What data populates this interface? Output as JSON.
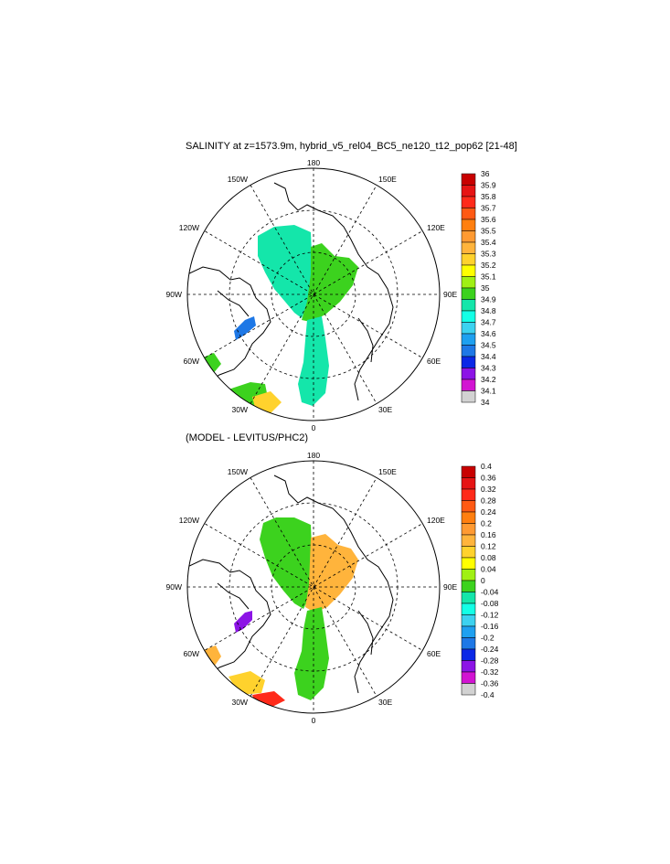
{
  "panels": [
    {
      "id": "salinity",
      "title": "SALINITY at z=1573.9m, hybrid_v5_rel04_BC5_ne120_t12_pop62 [21-48]",
      "longitude_labels": [
        "180",
        "150E",
        "120E",
        "90E",
        "60E",
        "30E",
        "0",
        "30W",
        "60W",
        "90W",
        "120W",
        "150W"
      ],
      "colorbar_labels": [
        "36",
        "35.9",
        "35.8",
        "35.7",
        "35.6",
        "35.5",
        "35.4",
        "35.3",
        "35.2",
        "35.1",
        "35",
        "34.9",
        "34.8",
        "34.7",
        "34.6",
        "34.5",
        "34.4",
        "34.3",
        "34.2",
        "34.1",
        "34"
      ],
      "colorbar_colors": [
        "#c80000",
        "#e61414",
        "#ff2a1a",
        "#ff5a14",
        "#ff7f0f",
        "#ff9a32",
        "#ffb43c",
        "#ffd22d",
        "#ffff00",
        "#a0f014",
        "#3cd21e",
        "#14e6aa",
        "#14ffe6",
        "#3cd2f0",
        "#1ea0f0",
        "#1e78e6",
        "#0a28e6",
        "#8c14e6",
        "#d214d2",
        "#d2d2d2"
      ]
    },
    {
      "id": "difference",
      "title": "(MODEL - LEVITUS/PHC2)",
      "longitude_labels": [
        "180",
        "150E",
        "120E",
        "90E",
        "60E",
        "30E",
        "0",
        "30W",
        "60W",
        "90W",
        "120W",
        "150W"
      ],
      "colorbar_labels": [
        "0.4",
        "0.36",
        "0.32",
        "0.28",
        "0.24",
        "0.2",
        "0.16",
        "0.12",
        "0.08",
        "0.04",
        "0",
        "-0.04",
        "-0.08",
        "-0.12",
        "-0.16",
        "-0.2",
        "-0.24",
        "-0.28",
        "-0.32",
        "-0.36",
        "-0.4"
      ],
      "colorbar_colors": [
        "#c80000",
        "#e61414",
        "#ff2a1a",
        "#ff5a14",
        "#ff7f0f",
        "#ff9a32",
        "#ffb43c",
        "#ffd22d",
        "#ffff00",
        "#a0f014",
        "#3cd21e",
        "#14e6aa",
        "#14ffe6",
        "#3cd2f0",
        "#1ea0f0",
        "#1e78e6",
        "#0a28e6",
        "#8c14e6",
        "#d214d2",
        "#d2d2d2"
      ]
    }
  ]
}
